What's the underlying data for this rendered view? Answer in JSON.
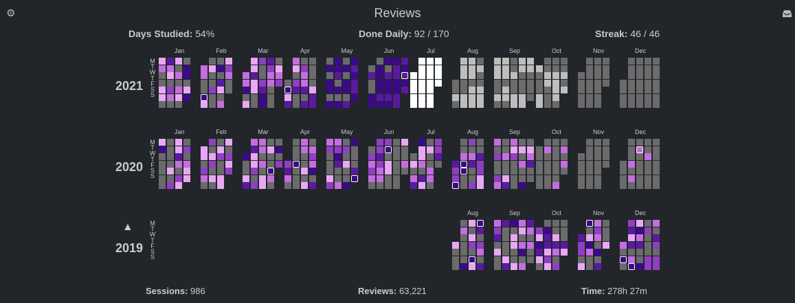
{
  "title": "Reviews",
  "icons": {
    "settings": "gear-icon",
    "archive": "inbox-icon"
  },
  "stats_top": {
    "days_studied": {
      "label": "Days Studied:",
      "value": "54%"
    },
    "done_daily": {
      "label": "Done Daily:",
      "value": "92 / 170"
    },
    "streak": {
      "label": "Streak:",
      "value": "46 / 46"
    }
  },
  "stats_bottom": {
    "sessions": {
      "label": "Sessions:",
      "value": "986"
    },
    "reviews": {
      "label": "Reviews:",
      "value": "63,221"
    },
    "time": {
      "label": "Time:",
      "value": "278h 27m"
    }
  },
  "day_labels": [
    "M",
    "T",
    "W",
    "T",
    "F",
    "S",
    "S"
  ],
  "months": [
    "Jan",
    "Feb",
    "Mar",
    "Apr",
    "May",
    "Jun",
    "Jul",
    "Aug",
    "Sep",
    "Oct",
    "Nov",
    "Dec"
  ],
  "years": [
    {
      "label": "2021",
      "first_month": 0,
      "last_month": 11,
      "toggle": null
    },
    {
      "label": "2020",
      "first_month": 0,
      "last_month": 11,
      "toggle": null
    },
    {
      "label": "2019",
      "first_month": 7,
      "last_month": 11,
      "toggle": "▲"
    }
  ],
  "colors": {
    "empty": "#6b6b6b",
    "future": "#bdbdbd",
    "future_light": "#ffffff",
    "level_1": "#e9a8f4",
    "level_2": "#c46ee0",
    "level_3": "#8f3fc0",
    "level_4": "#5a1aa0",
    "level_5": "#3b0a8a",
    "missed": "#8b1a3a"
  }
}
